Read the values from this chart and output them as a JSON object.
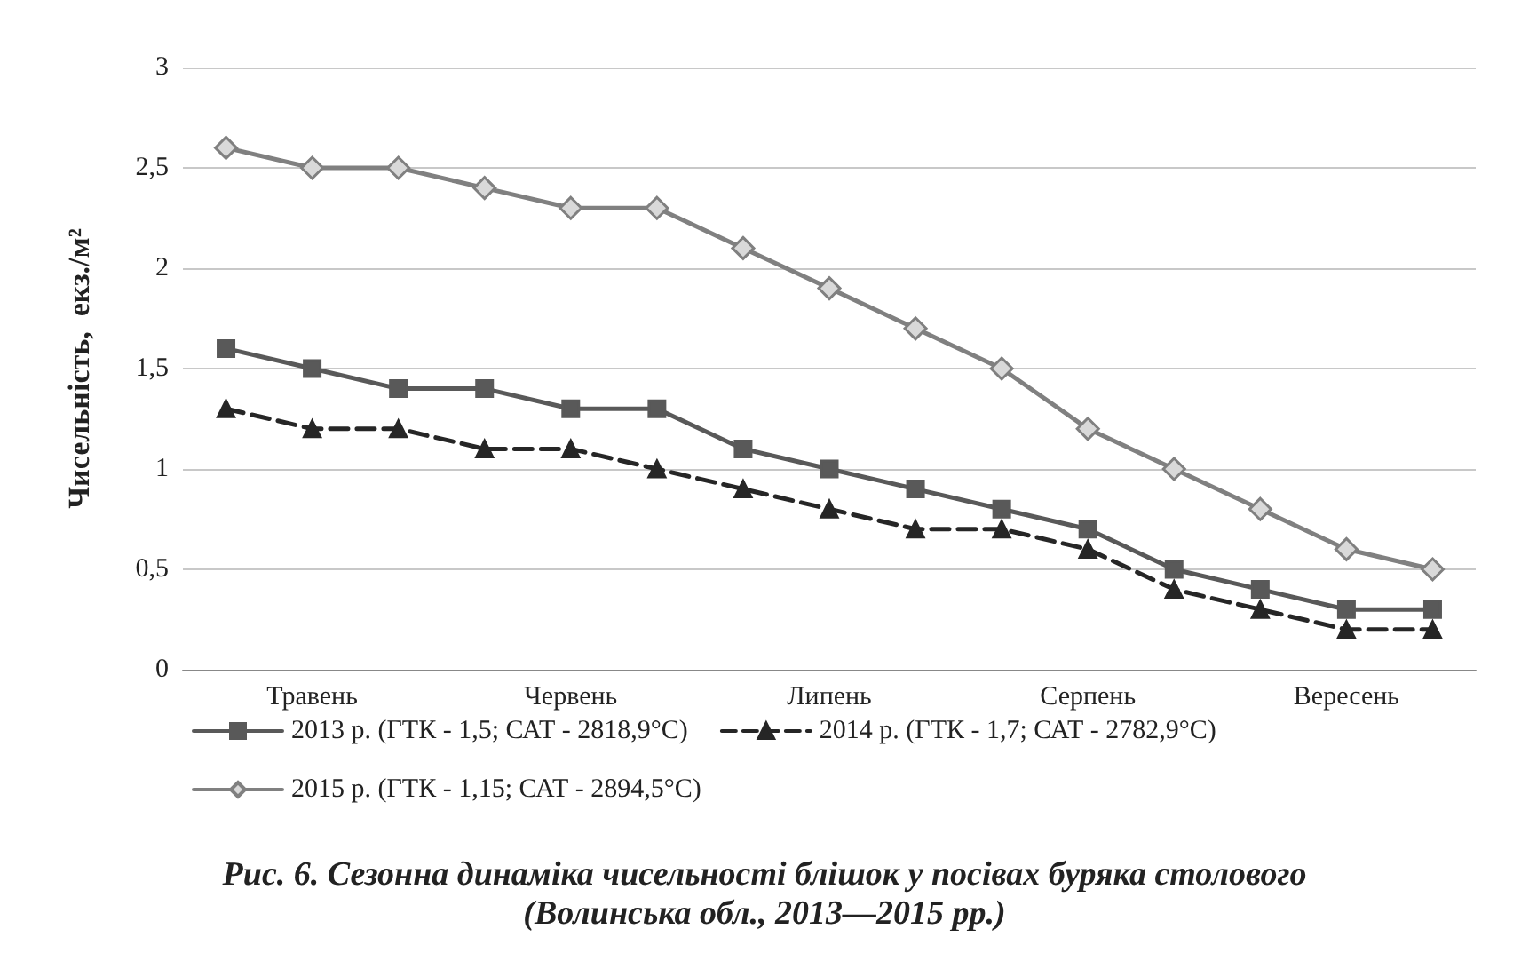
{
  "chart_data": {
    "type": "line",
    "ylabel": "Чисельність,  екз./м²",
    "categories": [
      null,
      "Травень",
      null,
      null,
      "Червень",
      null,
      null,
      "Липень",
      null,
      null,
      "Серпень",
      null,
      null,
      "Вересень",
      null
    ],
    "series": [
      {
        "name": "2013 р. (ГТК - 1,5; САТ - 2818,9°С)",
        "color": "#595959",
        "marker": "square",
        "line_style": "solid",
        "values": [
          1.6,
          1.5,
          1.4,
          1.4,
          1.3,
          1.3,
          1.1,
          1.0,
          0.9,
          0.8,
          0.7,
          0.5,
          0.4,
          0.3,
          0.3
        ]
      },
      {
        "name": "2014 р. (ГТК - 1,7; САТ - 2782,9°С)",
        "color": "#262626",
        "marker": "triangle",
        "line_style": "dashed",
        "values": [
          1.3,
          1.2,
          1.2,
          1.1,
          1.1,
          1.0,
          0.9,
          0.8,
          0.7,
          0.7,
          0.6,
          0.4,
          0.3,
          0.2,
          0.2
        ]
      },
      {
        "name": "2015 р. (ГТК - 1,15; САТ - 2894,5°С)",
        "color": "#808080",
        "marker": "diamond",
        "line_style": "solid",
        "values": [
          2.6,
          2.5,
          2.5,
          2.4,
          2.3,
          2.3,
          2.1,
          1.9,
          1.7,
          1.5,
          1.2,
          1.0,
          0.8,
          0.6,
          0.5
        ]
      }
    ],
    "ylim": [
      0,
      3
    ],
    "yticks": [
      0,
      {
        "value": 0.5,
        "label": "0,5"
      },
      1,
      {
        "value": 1.5,
        "label": "1,5"
      },
      2,
      {
        "value": 2.5,
        "label": "2,5"
      },
      3
    ],
    "grid": "y",
    "legend": "bottom",
    "annotations": [
      "Рис. 6. Сезонна динаміка чисельності блішок у посівах буряка столового",
      "(Волинська обл., 2013—2015 рр.)"
    ]
  }
}
